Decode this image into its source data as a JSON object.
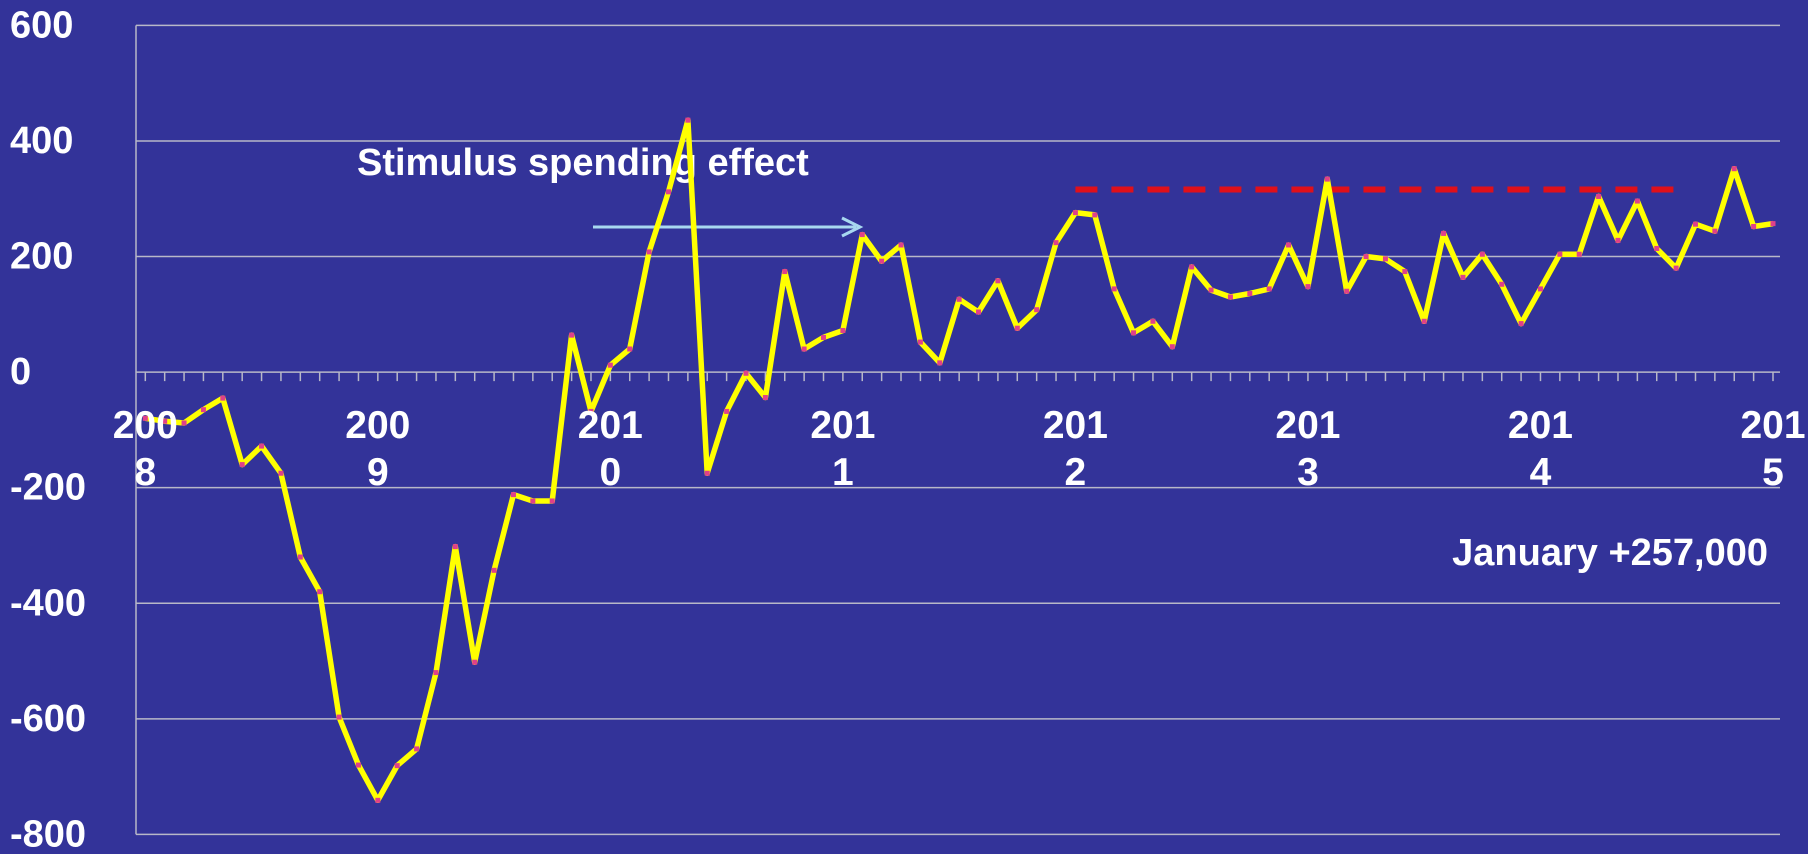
{
  "chart_data": {
    "type": "line",
    "categories": [
      "2008",
      null,
      null,
      null,
      null,
      null,
      null,
      null,
      null,
      null,
      null,
      null,
      "2009",
      null,
      null,
      null,
      null,
      null,
      null,
      null,
      null,
      null,
      null,
      null,
      "2010",
      null,
      null,
      null,
      null,
      null,
      null,
      null,
      null,
      null,
      null,
      null,
      "2011",
      null,
      null,
      null,
      null,
      null,
      null,
      null,
      null,
      null,
      null,
      null,
      "2012",
      null,
      null,
      null,
      null,
      null,
      null,
      null,
      null,
      null,
      null,
      null,
      "2013",
      null,
      null,
      null,
      null,
      null,
      null,
      null,
      null,
      null,
      null,
      null,
      "2014",
      null,
      null,
      null,
      null,
      null,
      null,
      null,
      null,
      null,
      null,
      null,
      "2015"
    ],
    "series": [
      {
        "color": "#ffff00",
        "marker_color": "#e0408a",
        "values": [
          -80,
          -85,
          -88,
          -65,
          -45,
          -160,
          -128,
          -175,
          -320,
          -380,
          -597,
          -680,
          -741,
          -681,
          -652,
          -520,
          -302,
          -502,
          -343,
          -212,
          -223,
          -223,
          64,
          -68,
          12,
          40,
          208,
          312,
          436,
          -175,
          -68,
          -2,
          -44,
          174,
          40,
          60,
          72,
          238,
          192,
          220,
          52,
          16,
          126,
          104,
          158,
          76,
          108,
          224,
          276,
          272,
          144,
          68,
          88,
          44,
          182,
          142,
          130,
          136,
          144,
          220,
          148,
          334,
          140,
          200,
          196,
          174,
          88,
          240,
          164,
          204,
          152,
          84,
          144,
          204,
          204,
          304,
          228,
          296,
          214,
          180,
          256,
          244,
          352,
          252,
          257
        ]
      }
    ],
    "ylim": [
      -800,
      600
    ],
    "yticks": [
      -800,
      -600,
      -400,
      -200,
      0,
      200,
      400,
      600
    ],
    "grid": true,
    "reference_line": {
      "value": 316,
      "start": 48,
      "end": 79,
      "color": "#e0101a"
    },
    "annotations": [
      "Stimulus spending effect",
      "January +257,000"
    ]
  }
}
